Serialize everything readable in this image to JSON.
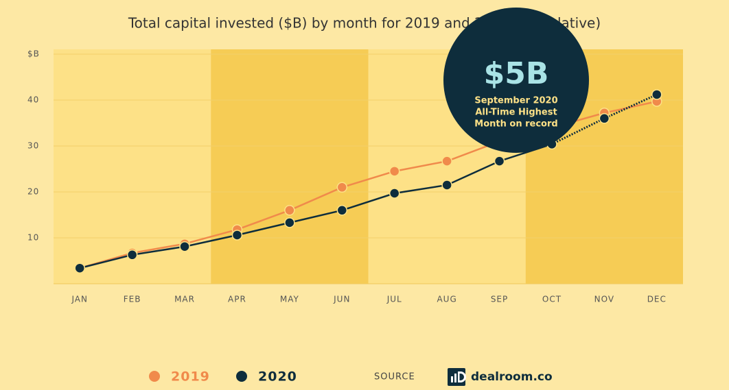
{
  "chart_data": {
    "type": "line",
    "title": "Total capital invested ($B) by month for 2019 and 2020 (cumulative)",
    "categories": [
      "JAN",
      "FEB",
      "MAR",
      "APR",
      "MAY",
      "JUN",
      "JUL",
      "AUG",
      "SEP",
      "OCT",
      "NOV",
      "DEC"
    ],
    "series": [
      {
        "name": "2019",
        "color": "#f08a4b",
        "values": [
          3.4,
          6.7,
          8.7,
          11.8,
          16,
          21,
          24.5,
          26.7,
          31,
          34,
          37.2,
          39.7
        ]
      },
      {
        "name": "2020",
        "color": "#0e2d3c",
        "values": [
          3.4,
          6.3,
          8.1,
          10.6,
          13.3,
          16,
          19.7,
          21.5,
          26.7,
          30.4,
          36,
          41.2
        ],
        "dotted_from": 9
      }
    ],
    "ylim": [
      0,
      50
    ],
    "yticks": [
      10,
      20,
      30,
      40,
      {
        "value": 50,
        "label": "$B"
      }
    ],
    "grid": true,
    "annotation": {
      "headline": "$5B",
      "text": [
        "September 2020",
        "All-Time Highest",
        "Month on record"
      ]
    },
    "source_label": "SOURCE",
    "source": "dealroom.co"
  }
}
